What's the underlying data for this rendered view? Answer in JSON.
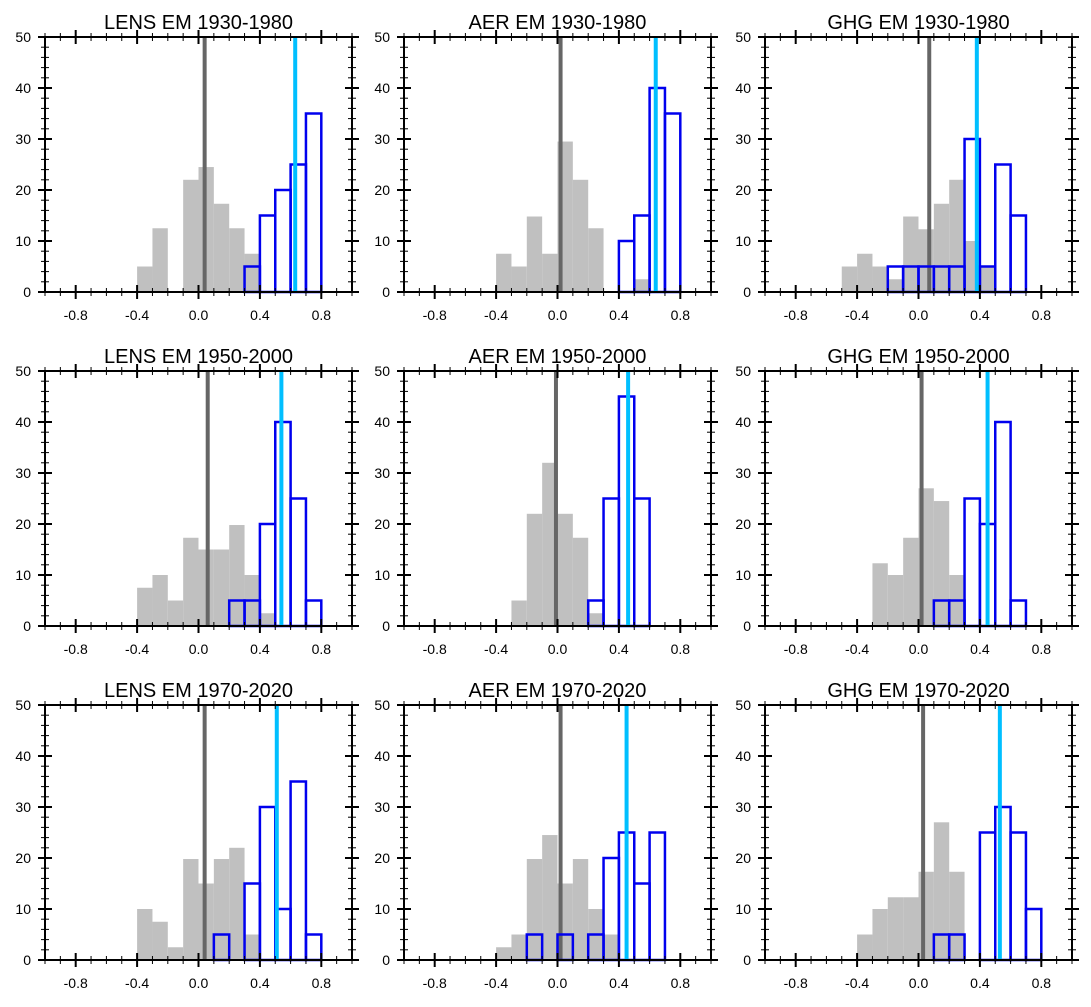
{
  "colors": {
    "ensemble_fill": "#c0c0c0",
    "target_outline": "#0000ee",
    "ensemble_mean_line": "#666666",
    "observed_line": "#00bfff",
    "axis": "#000000"
  },
  "chart_data": [
    {
      "type": "bar",
      "title": "LENS EM 1930-1980",
      "xlim": [
        -1.0,
        1.0
      ],
      "ylim": [
        0,
        50
      ],
      "xticks": [
        "-0.8",
        "-0.4",
        "0.0",
        "0.4",
        "0.8"
      ],
      "yticks": [
        "0",
        "10",
        "20",
        "30",
        "40",
        "50"
      ],
      "bin_width": 0.1,
      "gray_bins": [
        [
          -0.4,
          5
        ],
        [
          -0.3,
          12.5
        ],
        [
          -0.1,
          22
        ],
        [
          0.0,
          24.5
        ],
        [
          0.1,
          17.3
        ],
        [
          0.2,
          12.5
        ],
        [
          0.3,
          7.5
        ]
      ],
      "blue_bins": [
        [
          0.3,
          5
        ],
        [
          0.4,
          15
        ],
        [
          0.5,
          20
        ],
        [
          0.6,
          25
        ],
        [
          0.7,
          35
        ]
      ],
      "gray_line_x": 0.04,
      "cyan_line_x": 0.63
    },
    {
      "type": "bar",
      "title": "AER EM 1930-1980",
      "xlim": [
        -1.0,
        1.0
      ],
      "ylim": [
        0,
        50
      ],
      "xticks": [
        "-0.8",
        "-0.4",
        "0.0",
        "0.4",
        "0.8"
      ],
      "yticks": [
        "0",
        "10",
        "20",
        "30",
        "40",
        "50"
      ],
      "bin_width": 0.1,
      "gray_bins": [
        [
          -0.4,
          7.5
        ],
        [
          -0.3,
          5
        ],
        [
          -0.2,
          14.8
        ],
        [
          -0.1,
          7.5
        ],
        [
          0.0,
          29.5
        ],
        [
          0.1,
          22
        ],
        [
          0.2,
          12.5
        ],
        [
          0.5,
          2.5
        ]
      ],
      "blue_bins": [
        [
          0.4,
          10
        ],
        [
          0.5,
          15
        ],
        [
          0.6,
          40
        ],
        [
          0.7,
          35
        ]
      ],
      "gray_line_x": 0.02,
      "cyan_line_x": 0.64
    },
    {
      "type": "bar",
      "title": "GHG EM 1930-1980",
      "xlim": [
        -1.0,
        1.0
      ],
      "ylim": [
        0,
        50
      ],
      "xticks": [
        "-0.8",
        "-0.4",
        "0.0",
        "0.4",
        "0.8"
      ],
      "yticks": [
        "0",
        "10",
        "20",
        "30",
        "40",
        "50"
      ],
      "bin_width": 0.1,
      "gray_bins": [
        [
          -0.5,
          5
        ],
        [
          -0.4,
          7.5
        ],
        [
          -0.3,
          5
        ],
        [
          -0.2,
          2.5
        ],
        [
          -0.1,
          14.8
        ],
        [
          0.0,
          12.3
        ],
        [
          0.1,
          17.3
        ],
        [
          0.2,
          22
        ],
        [
          0.3,
          10
        ],
        [
          0.4,
          5
        ]
      ],
      "blue_bins": [
        [
          -0.2,
          5
        ],
        [
          -0.1,
          5
        ],
        [
          0.0,
          5
        ],
        [
          0.1,
          5
        ],
        [
          0.2,
          5
        ],
        [
          0.3,
          30
        ],
        [
          0.4,
          5
        ],
        [
          0.5,
          25
        ],
        [
          0.6,
          15
        ]
      ],
      "gray_line_x": 0.07,
      "cyan_line_x": 0.38
    },
    {
      "type": "bar",
      "title": "LENS EM 1950-2000",
      "xlim": [
        -1.0,
        1.0
      ],
      "ylim": [
        0,
        50
      ],
      "xticks": [
        "-0.8",
        "-0.4",
        "0.0",
        "0.4",
        "0.8"
      ],
      "yticks": [
        "0",
        "10",
        "20",
        "30",
        "40",
        "50"
      ],
      "bin_width": 0.1,
      "gray_bins": [
        [
          -0.4,
          7.5
        ],
        [
          -0.3,
          10
        ],
        [
          -0.2,
          5
        ],
        [
          -0.1,
          17.3
        ],
        [
          0.0,
          15
        ],
        [
          0.1,
          15
        ],
        [
          0.2,
          19.8
        ],
        [
          0.3,
          10
        ],
        [
          0.4,
          2.5
        ]
      ],
      "blue_bins": [
        [
          0.2,
          5
        ],
        [
          0.3,
          5
        ],
        [
          0.4,
          20
        ],
        [
          0.5,
          40
        ],
        [
          0.6,
          25
        ],
        [
          0.7,
          5
        ]
      ],
      "gray_line_x": 0.06,
      "cyan_line_x": 0.54
    },
    {
      "type": "bar",
      "title": "AER EM 1950-2000",
      "xlim": [
        -1.0,
        1.0
      ],
      "ylim": [
        0,
        50
      ],
      "xticks": [
        "-0.8",
        "-0.4",
        "0.0",
        "0.4",
        "0.8"
      ],
      "yticks": [
        "0",
        "10",
        "20",
        "30",
        "40",
        "50"
      ],
      "bin_width": 0.1,
      "gray_bins": [
        [
          -0.3,
          5
        ],
        [
          -0.2,
          22
        ],
        [
          -0.1,
          32
        ],
        [
          0.0,
          22
        ],
        [
          0.1,
          17.3
        ],
        [
          0.2,
          2.5
        ]
      ],
      "blue_bins": [
        [
          0.2,
          5
        ],
        [
          0.3,
          25
        ],
        [
          0.4,
          45
        ],
        [
          0.5,
          25
        ]
      ],
      "gray_line_x": -0.01,
      "cyan_line_x": 0.46
    },
    {
      "type": "bar",
      "title": "GHG EM 1950-2000",
      "xlim": [
        -1.0,
        1.0
      ],
      "ylim": [
        0,
        50
      ],
      "xticks": [
        "-0.8",
        "-0.4",
        "0.0",
        "0.4",
        "0.8"
      ],
      "yticks": [
        "0",
        "10",
        "20",
        "30",
        "40",
        "50"
      ],
      "bin_width": 0.1,
      "gray_bins": [
        [
          -0.3,
          12.3
        ],
        [
          -0.2,
          10
        ],
        [
          -0.1,
          17.3
        ],
        [
          0.0,
          27
        ],
        [
          0.1,
          24.5
        ],
        [
          0.2,
          10
        ]
      ],
      "blue_bins": [
        [
          0.1,
          5
        ],
        [
          0.2,
          5
        ],
        [
          0.3,
          25
        ],
        [
          0.4,
          20
        ],
        [
          0.5,
          40
        ],
        [
          0.6,
          5
        ]
      ],
      "gray_line_x": 0.02,
      "cyan_line_x": 0.45
    },
    {
      "type": "bar",
      "title": "LENS EM 1970-2020",
      "xlim": [
        -1.0,
        1.0
      ],
      "ylim": [
        0,
        50
      ],
      "xticks": [
        "-0.8",
        "-0.4",
        "0.0",
        "0.4",
        "0.8"
      ],
      "yticks": [
        "0",
        "10",
        "20",
        "30",
        "40",
        "50"
      ],
      "bin_width": 0.1,
      "gray_bins": [
        [
          -0.4,
          10
        ],
        [
          -0.3,
          7.5
        ],
        [
          -0.2,
          2.5
        ],
        [
          -0.1,
          19.8
        ],
        [
          0.0,
          15
        ],
        [
          0.1,
          19.8
        ],
        [
          0.2,
          22
        ],
        [
          0.3,
          5
        ]
      ],
      "blue_bins": [
        [
          0.1,
          5
        ],
        [
          0.3,
          15
        ],
        [
          0.4,
          30
        ],
        [
          0.5,
          10
        ],
        [
          0.6,
          35
        ],
        [
          0.7,
          5
        ]
      ],
      "gray_line_x": 0.04,
      "cyan_line_x": 0.51
    },
    {
      "type": "bar",
      "title": "AER EM 1970-2020",
      "xlim": [
        -1.0,
        1.0
      ],
      "ylim": [
        0,
        50
      ],
      "xticks": [
        "-0.8",
        "-0.4",
        "0.0",
        "0.4",
        "0.8"
      ],
      "yticks": [
        "0",
        "10",
        "20",
        "30",
        "40",
        "50"
      ],
      "bin_width": 0.1,
      "gray_bins": [
        [
          -0.4,
          2.5
        ],
        [
          -0.3,
          5
        ],
        [
          -0.2,
          19.8
        ],
        [
          -0.1,
          24.5
        ],
        [
          0.0,
          15
        ],
        [
          0.1,
          19.8
        ],
        [
          0.2,
          10
        ],
        [
          0.3,
          5
        ]
      ],
      "blue_bins": [
        [
          -0.2,
          5
        ],
        [
          0.0,
          5
        ],
        [
          0.2,
          5
        ],
        [
          0.3,
          20
        ],
        [
          0.4,
          25
        ],
        [
          0.5,
          15
        ],
        [
          0.6,
          25
        ]
      ],
      "gray_line_x": 0.02,
      "cyan_line_x": 0.45
    },
    {
      "type": "bar",
      "title": "GHG EM 1970-2020",
      "xlim": [
        -1.0,
        1.0
      ],
      "ylim": [
        0,
        50
      ],
      "xticks": [
        "-0.8",
        "-0.4",
        "0.0",
        "0.4",
        "0.8"
      ],
      "yticks": [
        "0",
        "10",
        "20",
        "30",
        "40",
        "50"
      ],
      "bin_width": 0.1,
      "gray_bins": [
        [
          -0.4,
          5
        ],
        [
          -0.3,
          10
        ],
        [
          -0.2,
          12.3
        ],
        [
          -0.1,
          12.3
        ],
        [
          0.0,
          17.3
        ],
        [
          0.1,
          27
        ],
        [
          0.2,
          17.3
        ]
      ],
      "blue_bins": [
        [
          0.1,
          5
        ],
        [
          0.2,
          5
        ],
        [
          0.4,
          25
        ],
        [
          0.5,
          30
        ],
        [
          0.6,
          25
        ],
        [
          0.7,
          10
        ]
      ],
      "gray_line_x": 0.03,
      "cyan_line_x": 0.53
    }
  ]
}
